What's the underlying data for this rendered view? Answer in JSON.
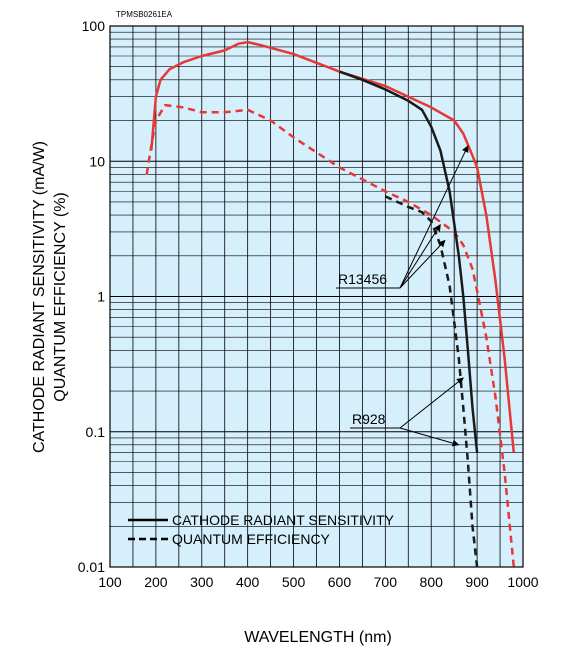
{
  "chart_data": {
    "type": "line",
    "figure_code": "TPMSB0261EA",
    "xlabel": "WAVELENGTH (nm)",
    "ylabel": [
      "CATHODE RADIANT SENSITIVITY (mA/W)",
      "QUANTUM EFFICIENCY (%)"
    ],
    "xlim": [
      100,
      1000
    ],
    "ylim": [
      0.01,
      100
    ],
    "y_scale": "log",
    "grid": true,
    "background_color": "#d6effc",
    "x_ticks": [
      "100",
      "200",
      "300",
      "400",
      "500",
      "600",
      "700",
      "800",
      "900",
      "1000"
    ],
    "y_ticks": [
      {
        "value": 0.01,
        "label": "0.01"
      },
      {
        "value": 0.1,
        "label": "0.1"
      },
      {
        "value": 1,
        "label": "1"
      },
      {
        "value": 10,
        "label": "10"
      },
      {
        "value": 100,
        "label": "100"
      }
    ],
    "legend": {
      "placement": "bottom-left",
      "items": [
        {
          "label": "CATHODE RADIANT SENSITIVITY",
          "style": "solid"
        },
        {
          "label": "QUANTUM EFFICIENCY",
          "style": "dashed"
        }
      ]
    },
    "series": [
      {
        "model": "R13456",
        "quantity": "cathode radiant sensitivity",
        "color": "#e53935",
        "style": "solid",
        "points": [
          [
            190,
            12
          ],
          [
            200,
            30
          ],
          [
            210,
            40
          ],
          [
            230,
            48
          ],
          [
            260,
            54
          ],
          [
            300,
            60
          ],
          [
            350,
            66
          ],
          [
            380,
            74
          ],
          [
            400,
            76
          ],
          [
            430,
            72
          ],
          [
            500,
            62
          ],
          [
            600,
            46
          ],
          [
            700,
            36
          ],
          [
            750,
            30
          ],
          [
            800,
            25
          ],
          [
            850,
            20
          ],
          [
            870,
            16
          ],
          [
            890,
            11
          ],
          [
            900,
            9
          ],
          [
            920,
            4
          ],
          [
            940,
            1.3
          ],
          [
            960,
            0.35
          ],
          [
            980,
            0.07
          ]
        ]
      },
      {
        "model": "R13456",
        "quantity": "quantum efficiency",
        "color": "#e53935",
        "style": "dashed",
        "points": [
          [
            180,
            8
          ],
          [
            190,
            13
          ],
          [
            200,
            20
          ],
          [
            220,
            26
          ],
          [
            260,
            25
          ],
          [
            300,
            23
          ],
          [
            350,
            23
          ],
          [
            400,
            24
          ],
          [
            450,
            20
          ],
          [
            500,
            15
          ],
          [
            600,
            9
          ],
          [
            700,
            6
          ],
          [
            750,
            5
          ],
          [
            800,
            4
          ],
          [
            850,
            3
          ],
          [
            870,
            2.4
          ],
          [
            890,
            1.6
          ],
          [
            900,
            1.1
          ],
          [
            920,
            0.5
          ],
          [
            940,
            0.18
          ],
          [
            960,
            0.05
          ],
          [
            980,
            0.01
          ]
        ]
      },
      {
        "model": "R928",
        "quantity": "cathode radiant sensitivity",
        "color": "#1a1a1a",
        "style": "solid",
        "points": [
          [
            600,
            46
          ],
          [
            650,
            40
          ],
          [
            700,
            34
          ],
          [
            750,
            28
          ],
          [
            780,
            24
          ],
          [
            800,
            18
          ],
          [
            820,
            12
          ],
          [
            840,
            6
          ],
          [
            860,
            2
          ],
          [
            870,
            1
          ],
          [
            880,
            0.4
          ],
          [
            890,
            0.15
          ],
          [
            900,
            0.07
          ]
        ]
      },
      {
        "model": "R928",
        "quantity": "quantum efficiency",
        "color": "#1a1a1a",
        "style": "dashed",
        "points": [
          [
            700,
            5.5
          ],
          [
            750,
            4.6
          ],
          [
            780,
            4.2
          ],
          [
            800,
            3.6
          ],
          [
            820,
            2.4
          ],
          [
            840,
            1.2
          ],
          [
            860,
            0.35
          ],
          [
            870,
            0.15
          ],
          [
            880,
            0.06
          ],
          [
            890,
            0.02
          ],
          [
            900,
            0.01
          ]
        ]
      }
    ],
    "annotations": [
      {
        "label": "R13456",
        "targets": [
          [
            880,
            13
          ],
          [
            820,
            3.4
          ],
          [
            830,
            2.6
          ]
        ]
      },
      {
        "label": "R928",
        "targets": [
          [
            870,
            0.25
          ],
          [
            860,
            0.08
          ]
        ]
      }
    ]
  }
}
